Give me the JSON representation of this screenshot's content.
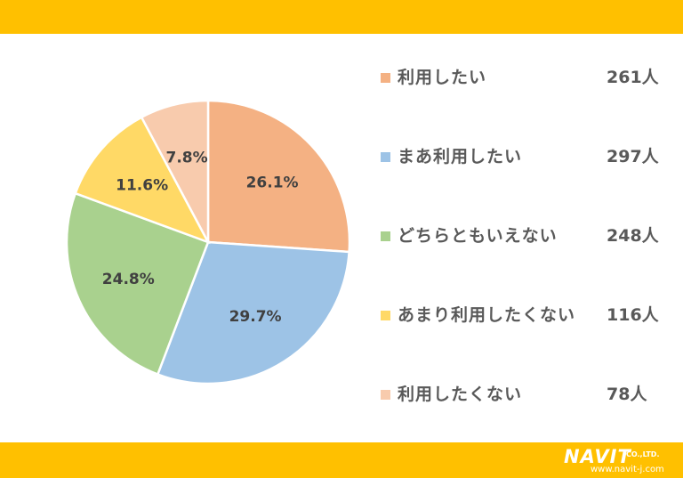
{
  "colors": {
    "bar": "#FFC000",
    "series": [
      "#F4B183",
      "#9DC3E6",
      "#A9D18E",
      "#FFD966",
      "#F8CBAD"
    ]
  },
  "chart_data": {
    "type": "pie",
    "title": "",
    "categories": [
      "利用したい",
      "まあ利用したい",
      "どちらともいえない",
      "あまり利用したくない",
      "利用したくない"
    ],
    "values": [
      26.1,
      29.7,
      24.8,
      11.6,
      7.8
    ],
    "value_labels": [
      "26.1%",
      "29.7%",
      "24.8%",
      "11.6%",
      "7.8%"
    ],
    "counts": [
      "261人",
      "297人",
      "248人",
      "116人",
      "78人"
    ],
    "legend": "right",
    "start_angle": "12 o'clock, clockwise"
  },
  "logo": {
    "main": "NAVIT",
    "sub": "CO.,LTD.",
    "url": "www.navit-j.com"
  }
}
